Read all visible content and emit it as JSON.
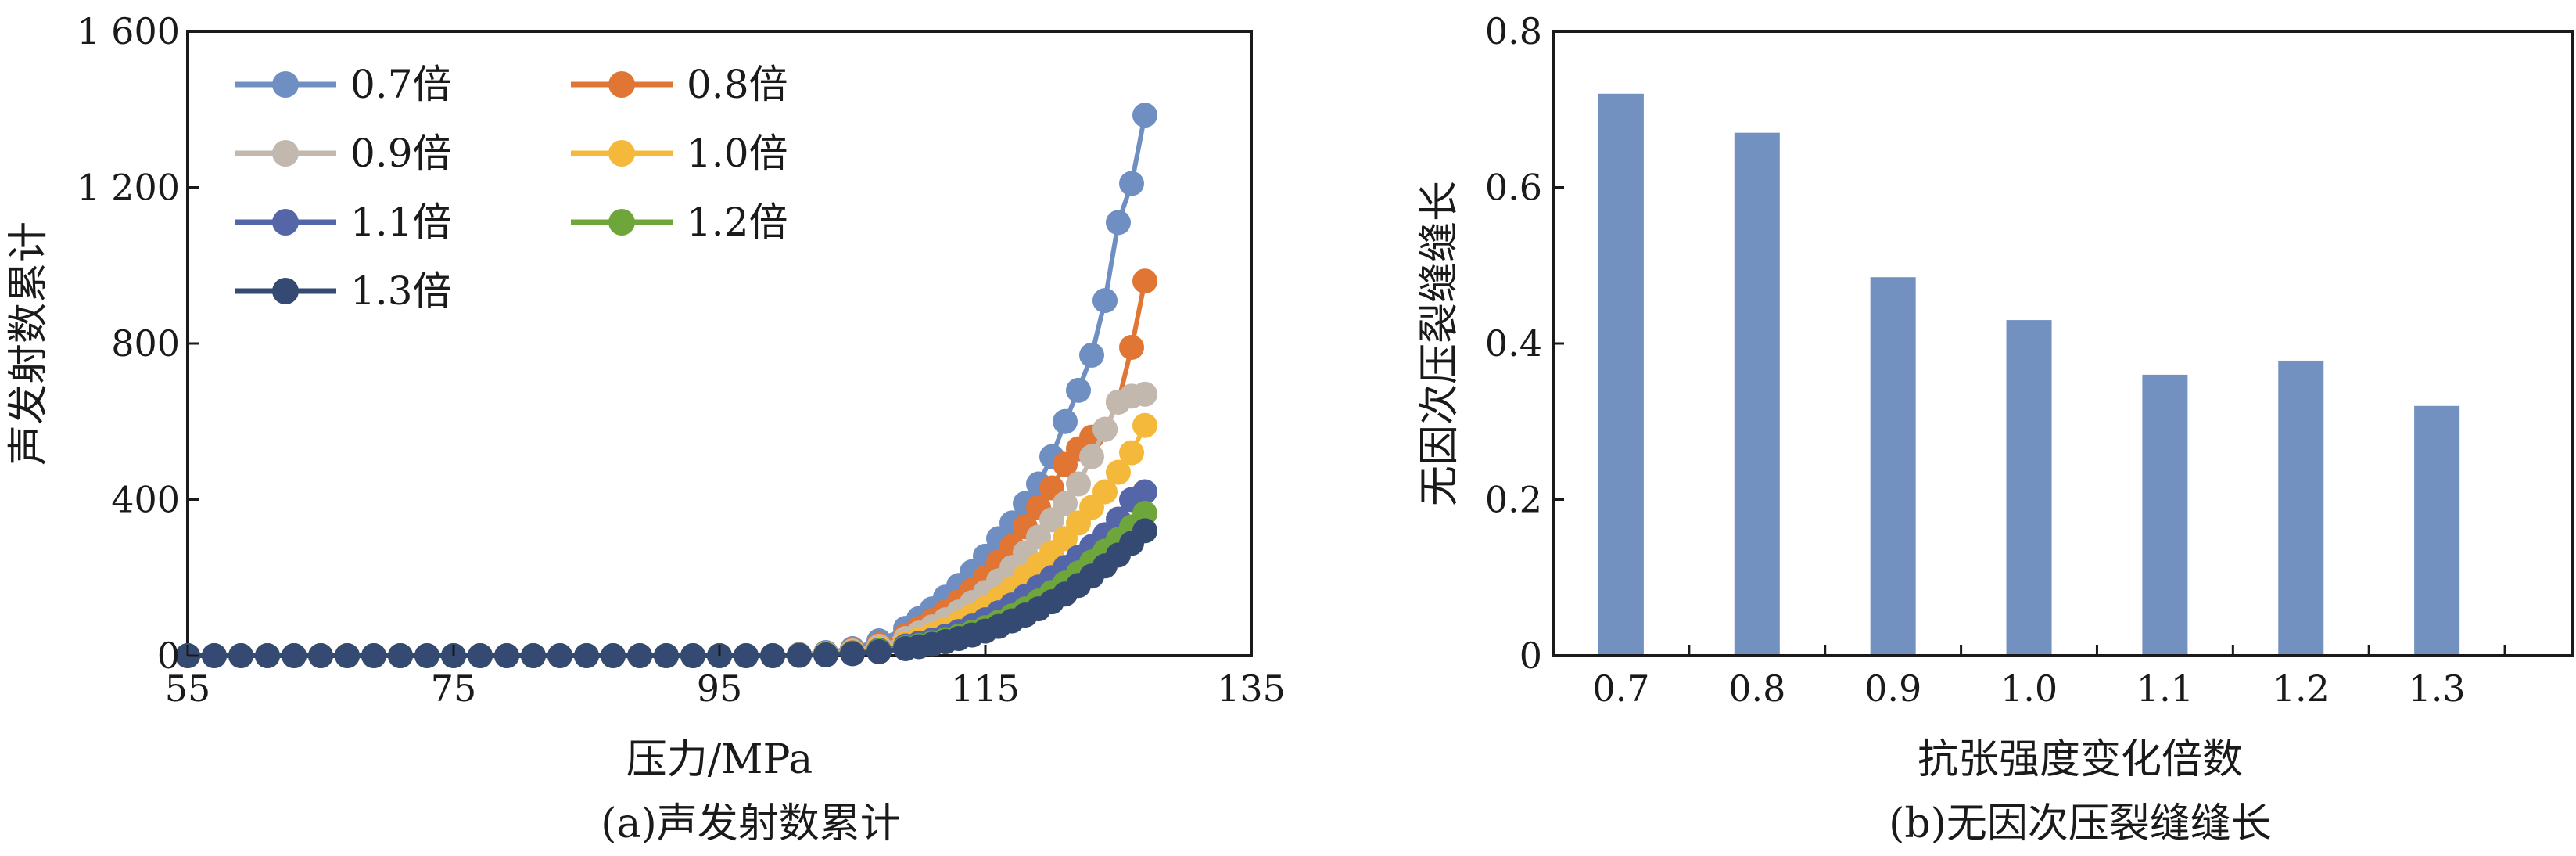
{
  "chart_data": [
    {
      "type": "line",
      "caption": "(a)声发射数累计",
      "xlabel": "压力/MPa",
      "ylabel": "声发射数累计",
      "xlim": [
        55,
        135
      ],
      "ylim": [
        0,
        1600
      ],
      "xticks": [
        55,
        75,
        95,
        115,
        135
      ],
      "yticks": [
        0,
        400,
        800,
        1200,
        1600
      ],
      "ytick_labels": [
        "0",
        "400",
        "800",
        "1 200",
        "1 600"
      ],
      "grid": false,
      "legend_position": "top-left",
      "marker": "circle",
      "series": [
        {
          "name": "0.7倍",
          "color": "#6f8fc2",
          "x": [
            55,
            57,
            59,
            61,
            63,
            65,
            67,
            69,
            71,
            73,
            75,
            77,
            79,
            81,
            83,
            85,
            87,
            89,
            91,
            93,
            95,
            97,
            99,
            101,
            103,
            105,
            107,
            109,
            110,
            111,
            112,
            113,
            114,
            115,
            116,
            117,
            118,
            119,
            120,
            121,
            122,
            123,
            124,
            125,
            126,
            127
          ],
          "y": [
            0,
            0,
            0,
            0,
            0,
            0,
            0,
            0,
            0,
            0,
            0,
            0,
            0,
            0,
            0,
            0,
            0,
            0,
            0,
            0,
            0,
            0,
            0,
            3,
            8,
            18,
            38,
            70,
            95,
            120,
            150,
            180,
            215,
            255,
            300,
            340,
            390,
            440,
            510,
            600,
            680,
            770,
            910,
            1110,
            1210,
            1385
          ]
        },
        {
          "name": "0.8倍",
          "color": "#e07534",
          "x": [
            55,
            57,
            59,
            61,
            63,
            65,
            67,
            69,
            71,
            73,
            75,
            77,
            79,
            81,
            83,
            85,
            87,
            89,
            91,
            93,
            95,
            97,
            99,
            101,
            103,
            105,
            107,
            109,
            110,
            111,
            112,
            113,
            114,
            115,
            116,
            117,
            118,
            119,
            120,
            121,
            122,
            123,
            124,
            125,
            126,
            127
          ],
          "y": [
            0,
            0,
            0,
            0,
            0,
            0,
            0,
            0,
            0,
            0,
            0,
            0,
            0,
            0,
            0,
            0,
            0,
            0,
            0,
            0,
            0,
            0,
            0,
            2,
            6,
            14,
            28,
            52,
            70,
            90,
            112,
            138,
            168,
            200,
            240,
            280,
            330,
            380,
            430,
            490,
            530,
            560,
            580,
            650,
            790,
            960
          ]
        },
        {
          "name": "0.9倍",
          "color": "#c2b8ae",
          "x": [
            55,
            57,
            59,
            61,
            63,
            65,
            67,
            69,
            71,
            73,
            75,
            77,
            79,
            81,
            83,
            85,
            87,
            89,
            91,
            93,
            95,
            97,
            99,
            101,
            103,
            105,
            107,
            109,
            110,
            111,
            112,
            113,
            114,
            115,
            116,
            117,
            118,
            119,
            120,
            121,
            122,
            123,
            124,
            125,
            126,
            127
          ],
          "y": [
            0,
            0,
            0,
            0,
            0,
            0,
            0,
            0,
            0,
            0,
            0,
            0,
            0,
            0,
            0,
            0,
            0,
            0,
            0,
            0,
            0,
            0,
            0,
            2,
            5,
            12,
            24,
            44,
            58,
            74,
            92,
            112,
            136,
            162,
            192,
            226,
            264,
            304,
            348,
            390,
            440,
            510,
            580,
            650,
            665,
            670
          ]
        },
        {
          "name": "1.0倍",
          "color": "#f4b83a",
          "x": [
            55,
            57,
            59,
            61,
            63,
            65,
            67,
            69,
            71,
            73,
            75,
            77,
            79,
            81,
            83,
            85,
            87,
            89,
            91,
            93,
            95,
            97,
            99,
            101,
            103,
            105,
            107,
            109,
            110,
            111,
            112,
            113,
            114,
            115,
            116,
            117,
            118,
            119,
            120,
            121,
            122,
            123,
            124,
            125,
            126,
            127
          ],
          "y": [
            0,
            0,
            0,
            0,
            0,
            0,
            0,
            0,
            0,
            0,
            0,
            0,
            0,
            0,
            0,
            0,
            0,
            0,
            0,
            0,
            0,
            0,
            0,
            1,
            4,
            9,
            18,
            32,
            42,
            54,
            68,
            84,
            102,
            122,
            146,
            172,
            202,
            232,
            264,
            300,
            340,
            380,
            420,
            470,
            520,
            590
          ]
        },
        {
          "name": "1.1倍",
          "color": "#5465a8",
          "x": [
            55,
            57,
            59,
            61,
            63,
            65,
            67,
            69,
            71,
            73,
            75,
            77,
            79,
            81,
            83,
            85,
            87,
            89,
            91,
            93,
            95,
            97,
            99,
            101,
            103,
            105,
            107,
            109,
            110,
            111,
            112,
            113,
            114,
            115,
            116,
            117,
            118,
            119,
            120,
            121,
            122,
            123,
            124,
            125,
            126,
            127
          ],
          "y": [
            0,
            0,
            0,
            0,
            0,
            0,
            0,
            0,
            0,
            0,
            0,
            0,
            0,
            0,
            0,
            0,
            0,
            0,
            0,
            0,
            0,
            0,
            0,
            1,
            3,
            7,
            14,
            25,
            32,
            40,
            50,
            62,
            76,
            92,
            110,
            130,
            152,
            176,
            200,
            226,
            252,
            280,
            310,
            350,
            400,
            420
          ]
        },
        {
          "name": "1.2倍",
          "color": "#6ea63c",
          "x": [
            55,
            57,
            59,
            61,
            63,
            65,
            67,
            69,
            71,
            73,
            75,
            77,
            79,
            81,
            83,
            85,
            87,
            89,
            91,
            93,
            95,
            97,
            99,
            101,
            103,
            105,
            107,
            109,
            110,
            111,
            112,
            113,
            114,
            115,
            116,
            117,
            118,
            119,
            120,
            121,
            122,
            123,
            124,
            125,
            126,
            127
          ],
          "y": [
            0,
            0,
            0,
            0,
            0,
            0,
            0,
            0,
            0,
            0,
            0,
            0,
            0,
            0,
            0,
            0,
            0,
            0,
            0,
            0,
            0,
            0,
            0,
            1,
            3,
            6,
            12,
            20,
            26,
            33,
            41,
            50,
            60,
            72,
            86,
            102,
            120,
            140,
            162,
            186,
            212,
            240,
            268,
            298,
            330,
            365
          ]
        },
        {
          "name": "1.3倍",
          "color": "#344a72",
          "x": [
            55,
            57,
            59,
            61,
            63,
            65,
            67,
            69,
            71,
            73,
            75,
            77,
            79,
            81,
            83,
            85,
            87,
            89,
            91,
            93,
            95,
            97,
            99,
            101,
            103,
            105,
            107,
            109,
            110,
            111,
            112,
            113,
            114,
            115,
            116,
            117,
            118,
            119,
            120,
            121,
            122,
            123,
            124,
            125,
            126,
            127
          ],
          "y": [
            0,
            0,
            0,
            0,
            0,
            0,
            0,
            0,
            0,
            0,
            0,
            0,
            0,
            0,
            0,
            0,
            0,
            0,
            0,
            0,
            0,
            0,
            0,
            1,
            2,
            5,
            10,
            18,
            23,
            29,
            36,
            44,
            53,
            63,
            75,
            89,
            104,
            120,
            138,
            158,
            180,
            204,
            230,
            258,
            288,
            320
          ]
        }
      ]
    },
    {
      "type": "bar",
      "caption": "(b)无因次压裂缝缝长",
      "xlabel": "抗张强度变化倍数",
      "ylabel": "无因次压裂缝缝长",
      "categories": [
        "0.7",
        "0.8",
        "0.9",
        "1.0",
        "1.1",
        "1.2",
        "1.3"
      ],
      "values": [
        0.72,
        0.67,
        0.485,
        0.43,
        0.36,
        0.378,
        0.32
      ],
      "ylim": [
        0,
        0.8
      ],
      "yticks": [
        0,
        0.2,
        0.4,
        0.6,
        0.8
      ],
      "ytick_labels": [
        "0",
        "0.2",
        "0.4",
        "0.6",
        "0.8"
      ],
      "bar_color": "#7391c0",
      "grid": false
    }
  ]
}
